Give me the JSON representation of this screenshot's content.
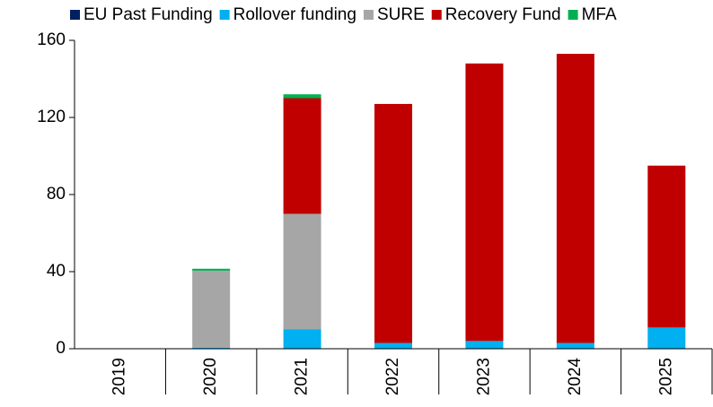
{
  "chart_data": {
    "type": "stacked_bar",
    "categories": [
      "2019",
      "2020",
      "2021",
      "2022",
      "2023",
      "2024",
      "2025"
    ],
    "series": [
      {
        "name": "EU Past Funding",
        "color": "#002060",
        "values": [
          0,
          0,
          0,
          0,
          0,
          0,
          0
        ]
      },
      {
        "name": "Rollover funding",
        "color": "#00b0f0",
        "values": [
          0,
          0.5,
          10,
          3,
          4,
          3,
          11
        ]
      },
      {
        "name": "SURE",
        "color": "#a6a6a6",
        "values": [
          0,
          40,
          60,
          0,
          0,
          0,
          0
        ]
      },
      {
        "name": "Recovery Fund",
        "color": "#c00000",
        "values": [
          0,
          0,
          60,
          124,
          144,
          150,
          84
        ]
      },
      {
        "name": "MFA",
        "color": "#00b050",
        "values": [
          0,
          1,
          2,
          0,
          0,
          0,
          0
        ]
      }
    ],
    "ylim": [
      0,
      160
    ],
    "yticks": [
      0,
      40,
      80,
      120,
      160
    ],
    "grid": false
  }
}
